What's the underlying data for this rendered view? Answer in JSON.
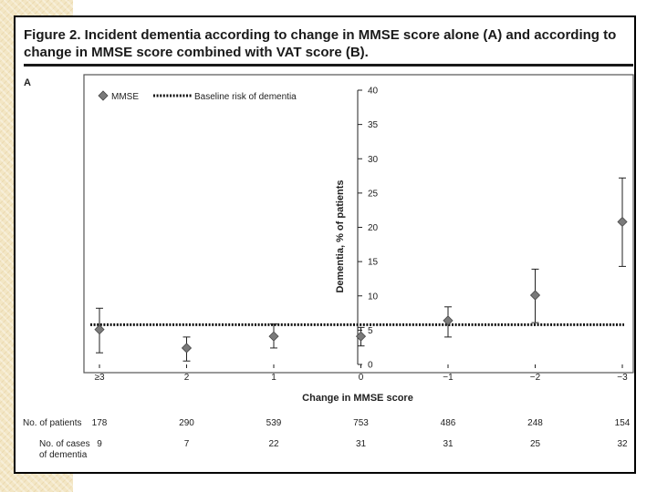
{
  "figure": {
    "title": "Figure 2. Incident dementia according to change in MMSE score alone (A) and according to change in MMSE score combined with VAT score (B).",
    "panel_label": "A"
  },
  "chart_data": {
    "type": "scatter",
    "series": [
      {
        "name": "MMSE",
        "marker": "diamond",
        "x": [
          "≥3",
          "2",
          "1",
          "0",
          "−1",
          "−2",
          "−3"
        ],
        "y": [
          5.1,
          2.4,
          4.1,
          4.1,
          6.4,
          10.1,
          20.8
        ],
        "error_low": [
          1.7,
          0.5,
          2.4,
          2.7,
          4.0,
          6.1,
          14.3
        ],
        "error_high": [
          8.2,
          4.0,
          5.9,
          5.4,
          8.4,
          13.9,
          27.2
        ]
      }
    ],
    "baseline": {
      "name": "Baseline risk of dementia",
      "value": 5.8,
      "style": "dotted"
    },
    "categories": [
      "≥3",
      "2",
      "1",
      "0",
      "−1",
      "−2",
      "−3"
    ],
    "xlabel": "Change in MMSE score",
    "ylabel": "Dementia, % of patients",
    "ylim": [
      0,
      40
    ],
    "yticks": [
      "0",
      "5",
      "10",
      "15",
      "20",
      "25",
      "30",
      "35",
      "40"
    ],
    "legend": {
      "placement": "top-left",
      "entries": [
        "MMSE",
        "Baseline risk of dementia"
      ]
    },
    "table": {
      "rows": [
        {
          "label": [
            "No. of patients"
          ],
          "values": [
            "178",
            "290",
            "539",
            "753",
            "486",
            "248",
            "154"
          ]
        },
        {
          "label": [
            "No. of cases",
            "of dementia"
          ],
          "values": [
            "9",
            "7",
            "22",
            "31",
            "31",
            "25",
            "32"
          ]
        }
      ]
    }
  },
  "colors": {
    "marker": "#7a7a7a",
    "ink": "#222222",
    "frame": "#555555"
  }
}
